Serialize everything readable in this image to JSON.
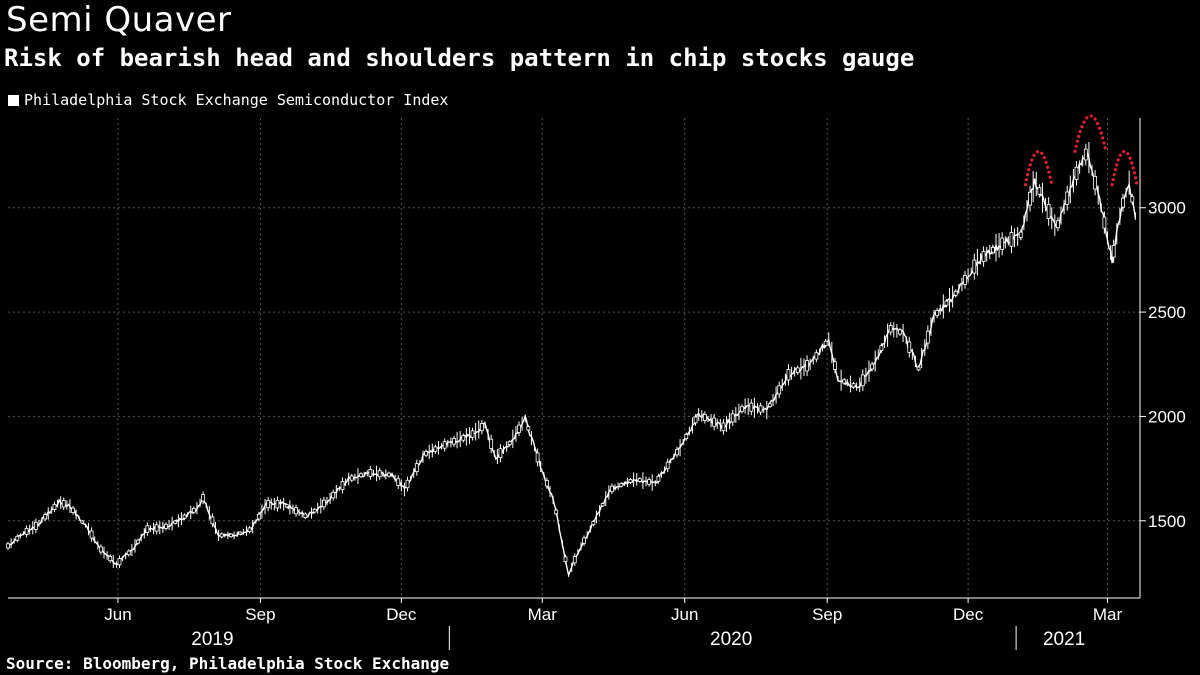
{
  "header": {
    "title": "Semi Quaver",
    "subtitle": "Risk of bearish head and shoulders pattern in chip stocks gauge"
  },
  "source": "Source: Bloomberg, Philadelphia Stock Exchange",
  "colors": {
    "background": "#000000",
    "line": "#ffffff",
    "pattern": "#e0202e",
    "grid": "#555555"
  },
  "chart_data": {
    "type": "line",
    "title": "Semi Quaver",
    "subtitle": "Risk of bearish head and shoulders pattern in chip stocks gauge",
    "legend": {
      "entries": [
        "Philadelphia Stock Exchange Semiconductor Index"
      ],
      "placement": "top-left"
    },
    "y_axis": {
      "side": "right",
      "ticks": [
        1500,
        2000,
        2500,
        3000
      ],
      "ylim": [
        1130,
        3430
      ]
    },
    "x_axis": {
      "month_ticks": [
        {
          "label": "Jun",
          "date": "2019-06-01"
        },
        {
          "label": "Sep",
          "date": "2019-09-01"
        },
        {
          "label": "Dec",
          "date": "2019-12-01"
        },
        {
          "label": "Mar",
          "date": "2020-03-01"
        },
        {
          "label": "Jun",
          "date": "2020-06-01"
        },
        {
          "label": "Sep",
          "date": "2020-09-01"
        },
        {
          "label": "Dec",
          "date": "2020-12-01"
        },
        {
          "label": "Mar",
          "date": "2021-03-01"
        }
      ],
      "year_labels": [
        {
          "label": "2019",
          "date": "2019-08-01"
        },
        {
          "label": "2020",
          "date": "2020-07-01"
        },
        {
          "label": "2021",
          "date": "2021-02-01"
        }
      ],
      "year_separators": [
        "2020-01-01",
        "2021-01-01"
      ],
      "xlim": [
        "2019-03-22",
        "2021-03-22"
      ]
    },
    "grid": true,
    "series": [
      {
        "name": "Philadelphia Stock Exchange Semiconductor Index",
        "points": [
          [
            "2019-03-22",
            1380
          ],
          [
            "2019-04-01",
            1440
          ],
          [
            "2019-04-10",
            1480
          ],
          [
            "2019-04-24",
            1590
          ],
          [
            "2019-05-01",
            1570
          ],
          [
            "2019-05-06",
            1520
          ],
          [
            "2019-05-13",
            1460
          ],
          [
            "2019-05-20",
            1370
          ],
          [
            "2019-05-31",
            1290
          ],
          [
            "2019-06-10",
            1360
          ],
          [
            "2019-06-20",
            1460
          ],
          [
            "2019-07-01",
            1470
          ],
          [
            "2019-07-10",
            1500
          ],
          [
            "2019-07-22",
            1560
          ],
          [
            "2019-07-26",
            1610
          ],
          [
            "2019-08-05",
            1430
          ],
          [
            "2019-08-15",
            1430
          ],
          [
            "2019-08-26",
            1460
          ],
          [
            "2019-09-05",
            1580
          ],
          [
            "2019-09-16",
            1580
          ],
          [
            "2019-10-01",
            1520
          ],
          [
            "2019-10-15",
            1600
          ],
          [
            "2019-10-28",
            1700
          ],
          [
            "2019-11-10",
            1730
          ],
          [
            "2019-11-25",
            1720
          ],
          [
            "2019-12-03",
            1650
          ],
          [
            "2019-12-16",
            1820
          ],
          [
            "2019-12-31",
            1870
          ],
          [
            "2020-01-15",
            1910
          ],
          [
            "2020-01-24",
            1960
          ],
          [
            "2020-01-31",
            1800
          ],
          [
            "2020-02-10",
            1880
          ],
          [
            "2020-02-19",
            1990
          ],
          [
            "2020-02-28",
            1780
          ],
          [
            "2020-03-09",
            1580
          ],
          [
            "2020-03-18",
            1240
          ],
          [
            "2020-03-24",
            1350
          ],
          [
            "2020-04-01",
            1460
          ],
          [
            "2020-04-14",
            1650
          ],
          [
            "2020-04-30",
            1700
          ],
          [
            "2020-05-13",
            1680
          ],
          [
            "2020-05-29",
            1850
          ],
          [
            "2020-06-10",
            2010
          ],
          [
            "2020-06-26",
            1950
          ],
          [
            "2020-07-10",
            2050
          ],
          [
            "2020-07-24",
            2030
          ],
          [
            "2020-08-07",
            2200
          ],
          [
            "2020-08-21",
            2250
          ],
          [
            "2020-09-02",
            2370
          ],
          [
            "2020-09-08",
            2180
          ],
          [
            "2020-09-21",
            2140
          ],
          [
            "2020-10-01",
            2250
          ],
          [
            "2020-10-12",
            2420
          ],
          [
            "2020-10-20",
            2400
          ],
          [
            "2020-10-30",
            2230
          ],
          [
            "2020-11-09",
            2480
          ],
          [
            "2020-11-23",
            2590
          ],
          [
            "2020-12-08",
            2750
          ],
          [
            "2020-12-21",
            2820
          ],
          [
            "2021-01-04",
            2870
          ],
          [
            "2021-01-13",
            3130
          ],
          [
            "2021-01-27",
            2900
          ],
          [
            "2021-02-08",
            3150
          ],
          [
            "2021-02-16",
            3270
          ],
          [
            "2021-02-25",
            3000
          ],
          [
            "2021-03-04",
            2750
          ],
          [
            "2021-03-10",
            3000
          ],
          [
            "2021-03-15",
            3120
          ],
          [
            "2021-03-19",
            2960
          ]
        ]
      }
    ],
    "annotations": [
      {
        "label": "left shoulder",
        "from": "2021-01-07",
        "to": "2021-01-24"
      },
      {
        "label": "head",
        "from": "2021-02-08",
        "to": "2021-02-28"
      },
      {
        "label": "right shoulder",
        "from": "2021-03-04",
        "to": "2021-03-20"
      }
    ]
  }
}
